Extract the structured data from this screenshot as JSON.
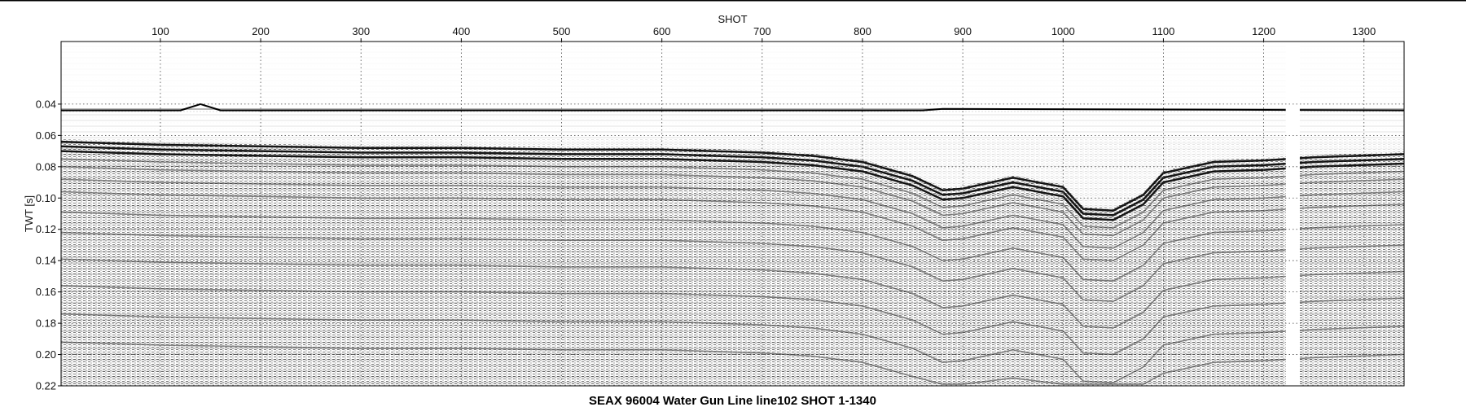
{
  "chart_data": {
    "type": "heatmap",
    "title": "SEAX 96004 Water Gun Line line102 SHOT 1-1340",
    "xlabel": "SHOT",
    "ylabel": "TWT [s]",
    "xlim": [
      1,
      1340
    ],
    "ylim": [
      0.0,
      0.22
    ],
    "y_inverted": true,
    "x_axis_position": "top",
    "grid": true,
    "grid_style": "dotted",
    "colormap": "grayscale seismic amplitude (wiggle density)",
    "x_ticks": [
      100,
      200,
      300,
      400,
      500,
      600,
      700,
      800,
      900,
      1000,
      1100,
      1200,
      1300
    ],
    "x_tick_labels": [
      "100",
      "200",
      "300",
      "400",
      "500",
      "600",
      "700",
      "800",
      "900",
      "1000",
      "1100",
      "1200",
      "1300"
    ],
    "y_ticks": [
      0.04,
      0.06,
      0.08,
      0.1,
      0.12,
      0.14,
      0.16,
      0.18,
      0.2,
      0.22
    ],
    "y_tick_labels": [
      "0.04",
      "0.06",
      "0.08",
      "0.10",
      "0.12",
      "0.14",
      "0.16",
      "0.18",
      "0.20",
      "0.22"
    ],
    "seafloor_twt": {
      "shot": [
        1,
        120,
        140,
        160,
        860,
        880,
        1340
      ],
      "twt": [
        0.044,
        0.044,
        0.04,
        0.044,
        0.044,
        0.043,
        0.044
      ]
    },
    "main_reflector_twt": {
      "shot": [
        1,
        100,
        200,
        300,
        400,
        500,
        600,
        700,
        750,
        800,
        850,
        880,
        900,
        950,
        1000,
        1020,
        1050,
        1080,
        1100,
        1150,
        1200,
        1250,
        1340
      ],
      "twt": [
        0.064,
        0.066,
        0.067,
        0.068,
        0.068,
        0.069,
        0.069,
        0.071,
        0.073,
        0.077,
        0.086,
        0.095,
        0.094,
        0.087,
        0.093,
        0.107,
        0.108,
        0.098,
        0.084,
        0.077,
        0.076,
        0.074,
        0.072
      ]
    },
    "data_gap_shots": [
      1222,
      1236
    ]
  }
}
